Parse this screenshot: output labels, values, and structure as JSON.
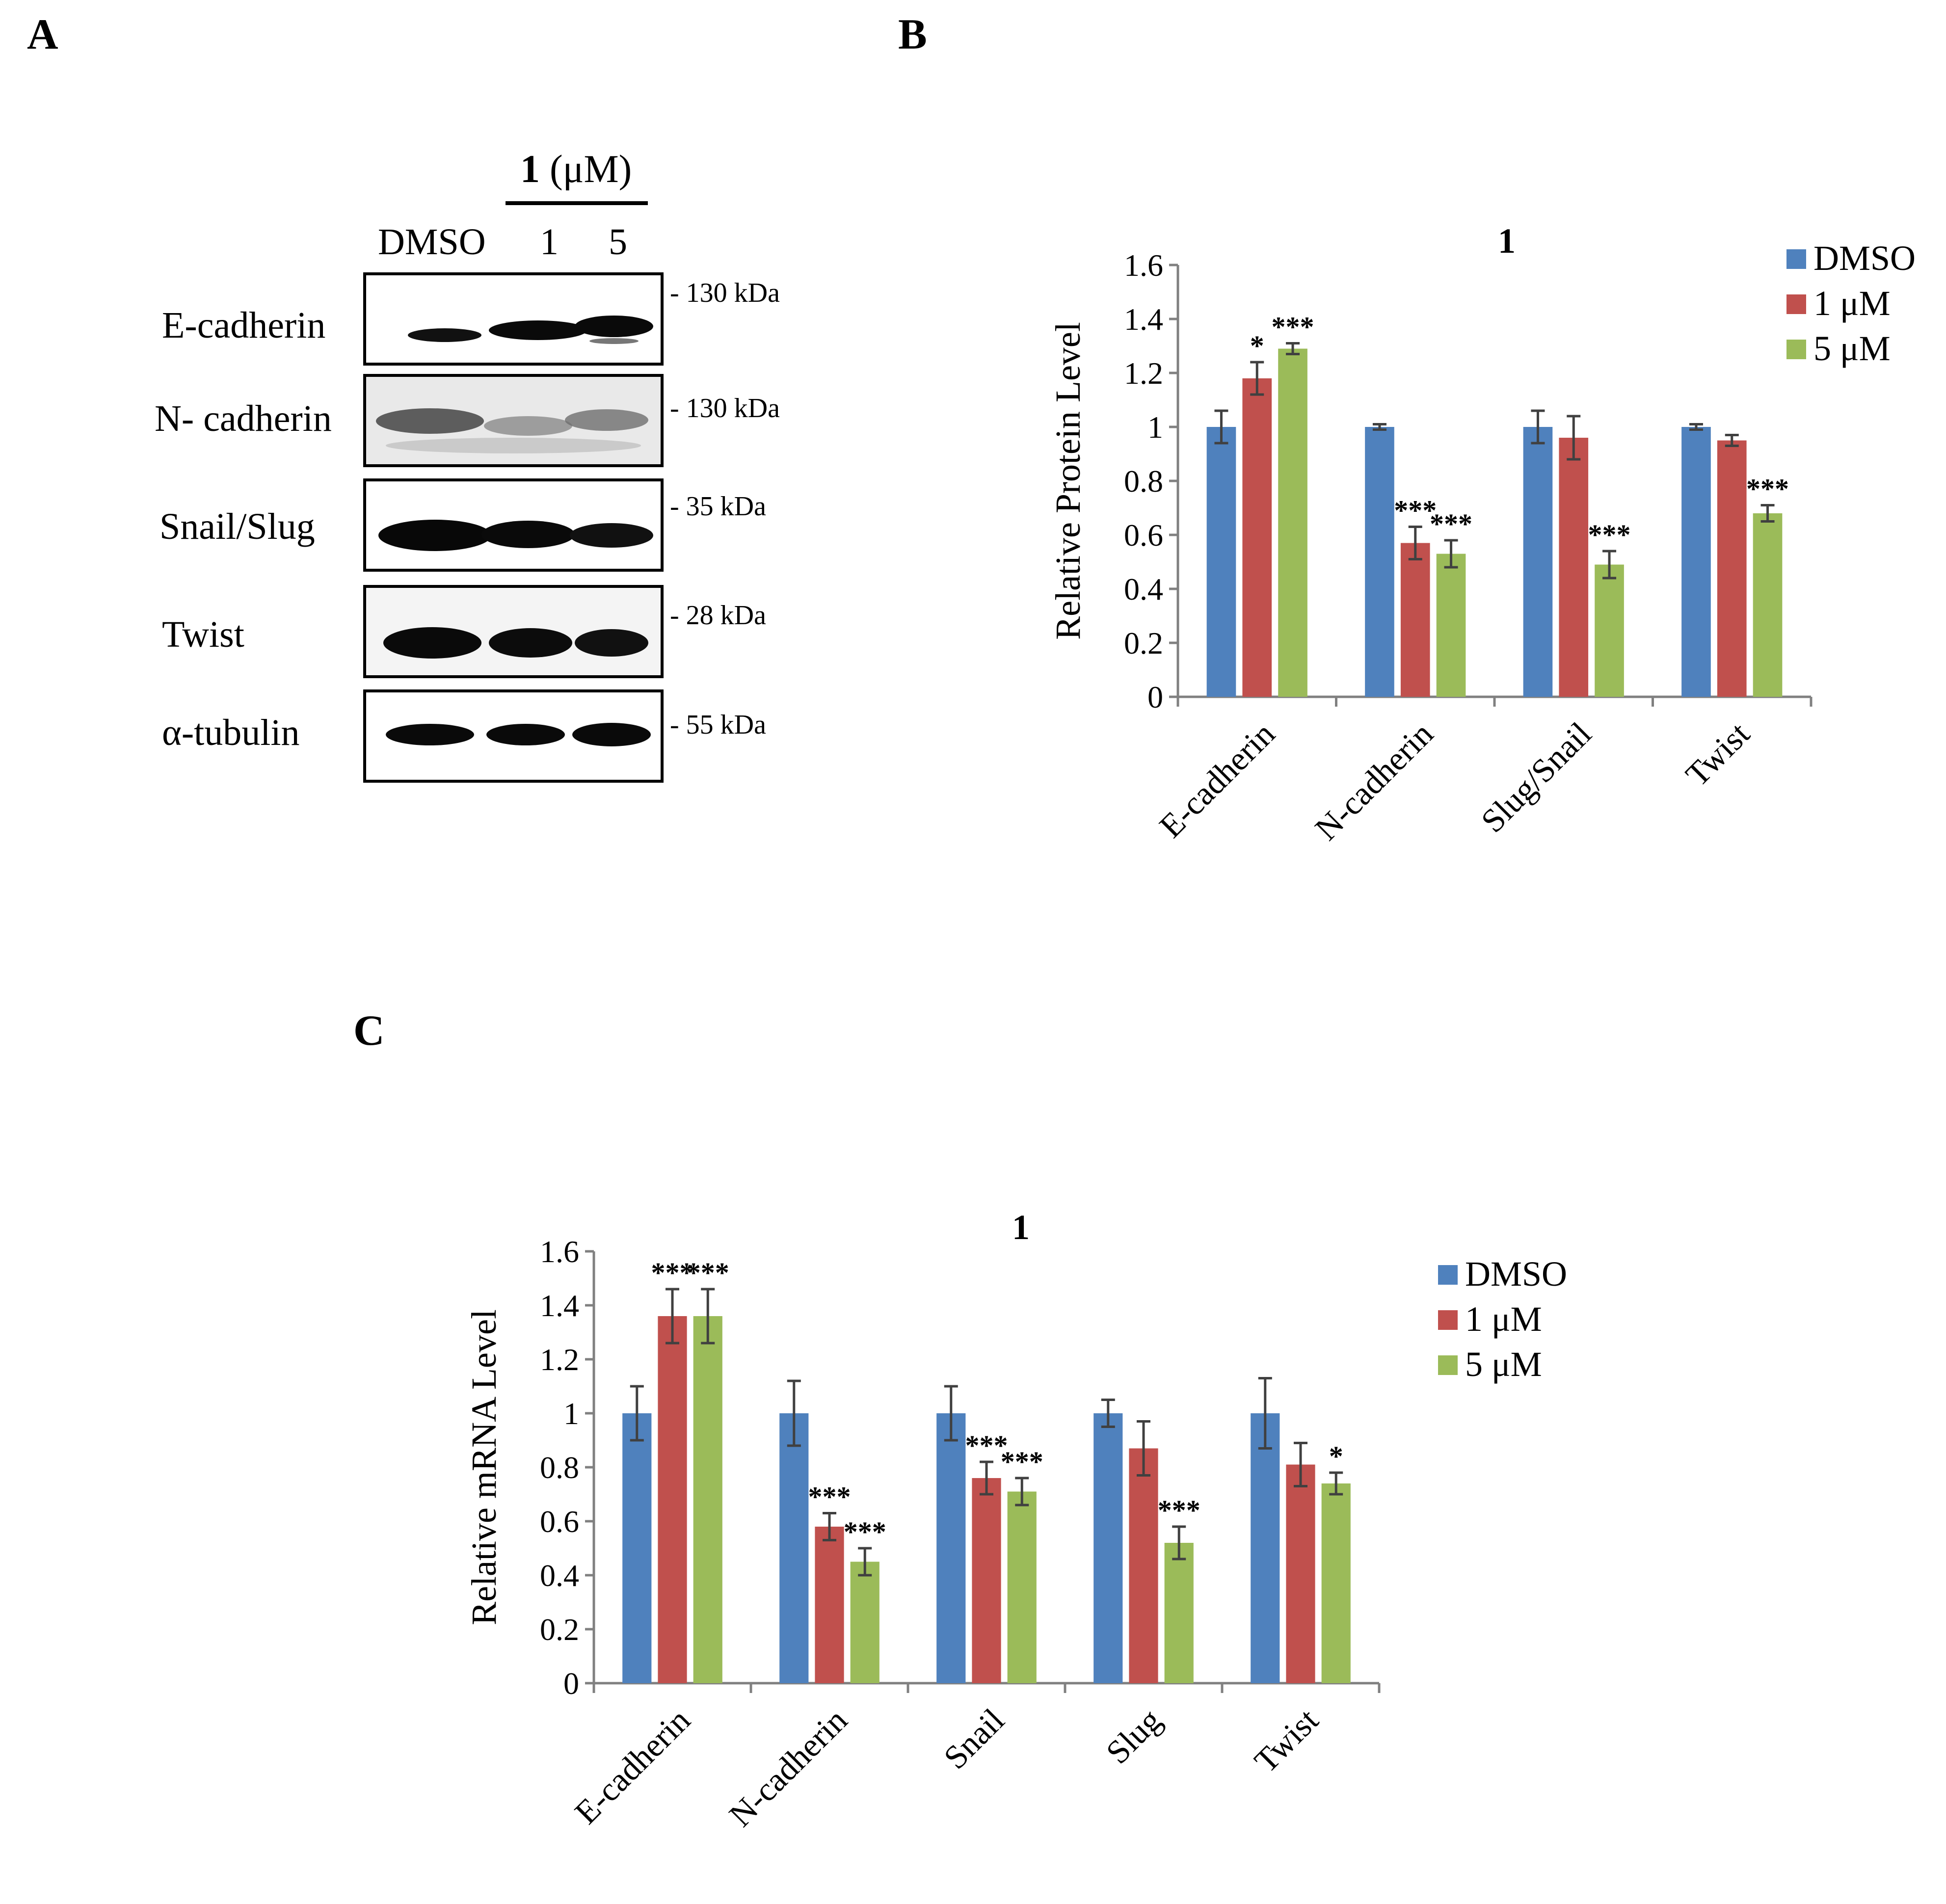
{
  "panels": {
    "a": "A",
    "b": "B",
    "c": "C"
  },
  "western_blot": {
    "treatment_compound": "1",
    "treatment_unit": "(μM)",
    "lanes": [
      "DMSO",
      "1",
      "5"
    ],
    "rows": [
      {
        "protein": "E-cadherin",
        "mw": "- 130 kDa"
      },
      {
        "protein": "N- cadherin",
        "mw": "- 130 kDa"
      },
      {
        "protein": "Snail/Slug",
        "mw": "- 35 kDa"
      },
      {
        "protein": "Twist",
        "mw": "- 28 kDa"
      },
      {
        "protein": "α-tubulin",
        "mw": "- 55 kDa"
      }
    ]
  },
  "colors": {
    "dmso": "#4F81BD",
    "um1": "#C0504D",
    "um5": "#9BBB59"
  },
  "chart_data": [
    {
      "id": "B",
      "type": "bar",
      "title": "1",
      "xlabel": "",
      "ylabel": "Relative Protein Level",
      "ylim": [
        0,
        1.6
      ],
      "yticks": [
        "0",
        "0.2",
        "0.4",
        "0.6",
        "0.8",
        "1",
        "1.2",
        "1.4",
        "1.6"
      ],
      "categories": [
        "E-cadherin",
        "N-cadherin",
        "Slug/Snail",
        "Twist"
      ],
      "legend_position": "top-right",
      "series": [
        {
          "name": "DMSO",
          "values": [
            1.0,
            1.0,
            1.0,
            1.0
          ],
          "errors": [
            0.06,
            0.01,
            0.06,
            0.01
          ],
          "stars": [
            "",
            "",
            "",
            ""
          ]
        },
        {
          "name": "1 μM",
          "values": [
            1.18,
            0.57,
            0.96,
            0.95
          ],
          "errors": [
            0.06,
            0.06,
            0.08,
            0.02
          ],
          "stars": [
            "*",
            "***",
            "",
            ""
          ]
        },
        {
          "name": "5 μM",
          "values": [
            1.29,
            0.53,
            0.49,
            0.68
          ],
          "errors": [
            0.02,
            0.05,
            0.05,
            0.03
          ],
          "stars": [
            "***",
            "***",
            "***",
            "***"
          ]
        }
      ]
    },
    {
      "id": "C",
      "type": "bar",
      "title": "1",
      "xlabel": "",
      "ylabel": "Relative mRNA Level",
      "ylim": [
        0,
        1.6
      ],
      "yticks": [
        "0",
        "0.2",
        "0.4",
        "0.6",
        "0.8",
        "1",
        "1.2",
        "1.4",
        "1.6"
      ],
      "categories": [
        "E-cadherin",
        "N-cadherin",
        "Snail",
        "Slug",
        "Twist"
      ],
      "legend_position": "top-right",
      "series": [
        {
          "name": "DMSO",
          "values": [
            1.0,
            1.0,
            1.0,
            1.0,
            1.0
          ],
          "errors": [
            0.1,
            0.12,
            0.1,
            0.05,
            0.13
          ],
          "stars": [
            "",
            "",
            "",
            "",
            ""
          ]
        },
        {
          "name": "1 μM",
          "values": [
            1.36,
            0.58,
            0.76,
            0.87,
            0.81
          ],
          "errors": [
            0.1,
            0.05,
            0.06,
            0.1,
            0.08
          ],
          "stars": [
            "***",
            "***",
            "***",
            "",
            ""
          ]
        },
        {
          "name": "5 μM",
          "values": [
            1.36,
            0.45,
            0.71,
            0.52,
            0.74
          ],
          "errors": [
            0.1,
            0.05,
            0.05,
            0.06,
            0.04
          ],
          "stars": [
            "***",
            "***",
            "***",
            "***",
            "*"
          ]
        }
      ]
    }
  ]
}
